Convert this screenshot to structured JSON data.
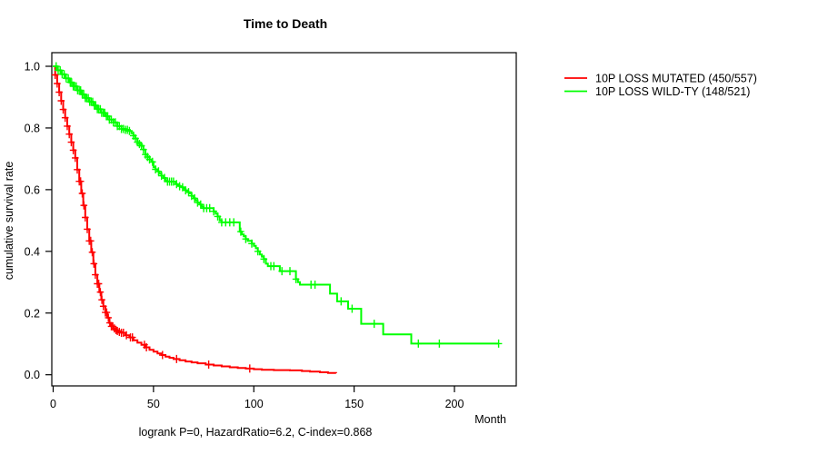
{
  "title": "Time to Death",
  "caption": "logrank P=0, HazardRatio=6.2, C-index=0.868",
  "axes": {
    "x_label": "Month",
    "y_label": "cumulative survival rate",
    "x_ticks": [
      0,
      50,
      100,
      150,
      200
    ],
    "x_tick_labels": [
      "0",
      "50",
      "100",
      "150",
      "200"
    ],
    "y_ticks": [
      0,
      0.2,
      0.4,
      0.6,
      0.8,
      1
    ],
    "y_tick_labels": [
      "0.0",
      "0.2",
      "0.4",
      "0.6",
      "0.8",
      "1.0"
    ]
  },
  "chart_data": {
    "type": "line",
    "subtype": "kaplan-meier-step-curves",
    "title": "Time to Death",
    "xlabel": "Month",
    "ylabel": "cumulative survival rate",
    "xlim": [
      0,
      231
    ],
    "ylim": [
      0,
      1.04
    ],
    "grid": false,
    "legend_position": "right-of-plot",
    "annotation": "logrank P=0, HazardRatio=6.2, C-index=0.868",
    "series": [
      {
        "id": "mutated",
        "name": "10P LOSS MUTATED (450/557)",
        "color": "#ff0000",
        "events": 450,
        "n": 557,
        "step_points": [
          [
            0,
            1
          ],
          [
            1,
            0.972
          ],
          [
            2,
            0.944
          ],
          [
            3,
            0.916
          ],
          [
            4,
            0.888
          ],
          [
            5,
            0.86
          ],
          [
            6,
            0.833
          ],
          [
            7,
            0.806
          ],
          [
            8,
            0.78
          ],
          [
            9,
            0.754
          ],
          [
            10,
            0.728
          ],
          [
            11,
            0.703
          ],
          [
            12,
            0.665
          ],
          [
            13,
            0.627
          ],
          [
            14,
            0.588
          ],
          [
            15,
            0.549
          ],
          [
            16,
            0.51
          ],
          [
            17,
            0.472
          ],
          [
            18,
            0.434
          ],
          [
            19,
            0.397
          ],
          [
            20,
            0.36
          ],
          [
            21,
            0.324
          ],
          [
            22,
            0.295
          ],
          [
            23,
            0.268
          ],
          [
            24,
            0.243
          ],
          [
            25,
            0.222
          ],
          [
            26,
            0.202
          ],
          [
            27,
            0.185
          ],
          [
            28,
            0.168
          ],
          [
            29,
            0.157
          ],
          [
            30,
            0.15
          ],
          [
            31,
            0.145
          ],
          [
            32,
            0.142
          ],
          [
            33,
            0.139
          ],
          [
            34,
            0.136
          ],
          [
            36,
            0.128
          ],
          [
            38,
            0.121
          ],
          [
            40,
            0.112
          ],
          [
            42,
            0.104
          ],
          [
            44,
            0.097
          ],
          [
            46,
            0.089
          ],
          [
            48,
            0.081
          ],
          [
            50,
            0.075
          ],
          [
            52,
            0.069
          ],
          [
            54,
            0.064
          ],
          [
            56,
            0.059
          ],
          [
            58,
            0.055
          ],
          [
            60,
            0.051
          ],
          [
            63,
            0.047
          ],
          [
            66,
            0.043
          ],
          [
            69,
            0.04
          ],
          [
            72,
            0.037
          ],
          [
            76,
            0.033
          ],
          [
            80,
            0.03
          ],
          [
            84,
            0.027
          ],
          [
            88,
            0.024
          ],
          [
            92,
            0.022
          ],
          [
            96,
            0.02
          ],
          [
            100,
            0.018
          ],
          [
            104,
            0.016
          ],
          [
            110,
            0.015
          ],
          [
            118,
            0.014
          ],
          [
            124,
            0.012
          ],
          [
            128,
            0.01
          ],
          [
            133,
            0.008
          ],
          [
            137,
            0.006
          ],
          [
            141,
            0.005
          ]
        ],
        "censor_times": [
          1,
          2,
          3,
          4,
          5,
          6,
          7,
          8,
          9,
          10,
          11,
          12,
          13,
          13.7,
          14.5,
          15.3,
          16,
          17,
          18,
          18.7,
          19.5,
          20.3,
          21,
          22,
          22.7,
          23.5,
          24.3,
          25,
          26,
          26.7,
          27.5,
          28.2,
          29,
          29.7,
          30.5,
          31.3,
          32,
          33,
          34,
          35,
          36.5,
          38.5,
          39.5,
          45.5,
          46.5,
          54.5,
          61.5,
          77.5,
          98
        ]
      },
      {
        "id": "wildtype",
        "name": "10P LOSS WILD-TY (148/521)",
        "color": "#00ff00",
        "events": 148,
        "n": 521,
        "step_points": [
          [
            0,
            1
          ],
          [
            2,
            0.987
          ],
          [
            4,
            0.974
          ],
          [
            6,
            0.961
          ],
          [
            8,
            0.948
          ],
          [
            10,
            0.935
          ],
          [
            12,
            0.922
          ],
          [
            14,
            0.909
          ],
          [
            16,
            0.897
          ],
          [
            18,
            0.885
          ],
          [
            20,
            0.873
          ],
          [
            22,
            0.861
          ],
          [
            24,
            0.849
          ],
          [
            26,
            0.838
          ],
          [
            28,
            0.827
          ],
          [
            30,
            0.818
          ],
          [
            32,
            0.806
          ],
          [
            34,
            0.797
          ],
          [
            36,
            0.794
          ],
          [
            38,
            0.79
          ],
          [
            39,
            0.783
          ],
          [
            40,
            0.775
          ],
          [
            41,
            0.766
          ],
          [
            42,
            0.754
          ],
          [
            43,
            0.748
          ],
          [
            44,
            0.742
          ],
          [
            45,
            0.73
          ],
          [
            46,
            0.714
          ],
          [
            47,
            0.706
          ],
          [
            48,
            0.698
          ],
          [
            49,
            0.69
          ],
          [
            50,
            0.673
          ],
          [
            51,
            0.666
          ],
          [
            52,
            0.659
          ],
          [
            53,
            0.652
          ],
          [
            54,
            0.645
          ],
          [
            55,
            0.638
          ],
          [
            56,
            0.63
          ],
          [
            57,
            0.626
          ],
          [
            60,
            0.626
          ],
          [
            61,
            0.618
          ],
          [
            62,
            0.614
          ],
          [
            63,
            0.611
          ],
          [
            64,
            0.608
          ],
          [
            65,
            0.603
          ],
          [
            66,
            0.598
          ],
          [
            67,
            0.592
          ],
          [
            68,
            0.588
          ],
          [
            69,
            0.58
          ],
          [
            70,
            0.572
          ],
          [
            71,
            0.565
          ],
          [
            72,
            0.558
          ],
          [
            73,
            0.552
          ],
          [
            74,
            0.545
          ],
          [
            75,
            0.54
          ],
          [
            79,
            0.54
          ],
          [
            80,
            0.53
          ],
          [
            81,
            0.522
          ],
          [
            82,
            0.513
          ],
          [
            83,
            0.5
          ],
          [
            84,
            0.494
          ],
          [
            92,
            0.494
          ],
          [
            93,
            0.464
          ],
          [
            94,
            0.455
          ],
          [
            95,
            0.449
          ],
          [
            96,
            0.44
          ],
          [
            97,
            0.434
          ],
          [
            99,
            0.425
          ],
          [
            100,
            0.418
          ],
          [
            101,
            0.41
          ],
          [
            102,
            0.4
          ],
          [
            103,
            0.39
          ],
          [
            104,
            0.383
          ],
          [
            105,
            0.375
          ],
          [
            106,
            0.36
          ],
          [
            107,
            0.352
          ],
          [
            112,
            0.352
          ],
          [
            113,
            0.336
          ],
          [
            120,
            0.336
          ],
          [
            121,
            0.31
          ],
          [
            122,
            0.3
          ],
          [
            123,
            0.292
          ],
          [
            137,
            0.292
          ],
          [
            138,
            0.263
          ],
          [
            141.5,
            0.238
          ],
          [
            147,
            0.214
          ],
          [
            153.5,
            0.165
          ],
          [
            164.5,
            0.131
          ],
          [
            178.5,
            0.101
          ],
          [
            222,
            0.101
          ]
        ],
        "censor_times": [
          1.5,
          2.5,
          3.5,
          4.5,
          5.5,
          6.5,
          7.5,
          8.5,
          9.2,
          10,
          10.7,
          11.5,
          12.2,
          13,
          13.7,
          14.5,
          15.2,
          16,
          16.7,
          17.5,
          18.2,
          19,
          19.7,
          20.5,
          21.2,
          22,
          22.7,
          23.5,
          24.2,
          25,
          25.7,
          26.5,
          27.2,
          28,
          29,
          30,
          31,
          32,
          33,
          34,
          35,
          36,
          37,
          38,
          40,
          41,
          42,
          43,
          44,
          45,
          46,
          47,
          48,
          49.5,
          51,
          52.5,
          54,
          55.5,
          57,
          58,
          59,
          60,
          61.5,
          63,
          64.5,
          66,
          67.5,
          69,
          70.5,
          72,
          73.5,
          75,
          76.5,
          78,
          80,
          82,
          84,
          86,
          88,
          90,
          93.5,
          96,
          99,
          102,
          105,
          108.5,
          110,
          114,
          118,
          121,
          128.5,
          130.5,
          143.5,
          149,
          160,
          182,
          192.5,
          222
        ]
      }
    ]
  }
}
